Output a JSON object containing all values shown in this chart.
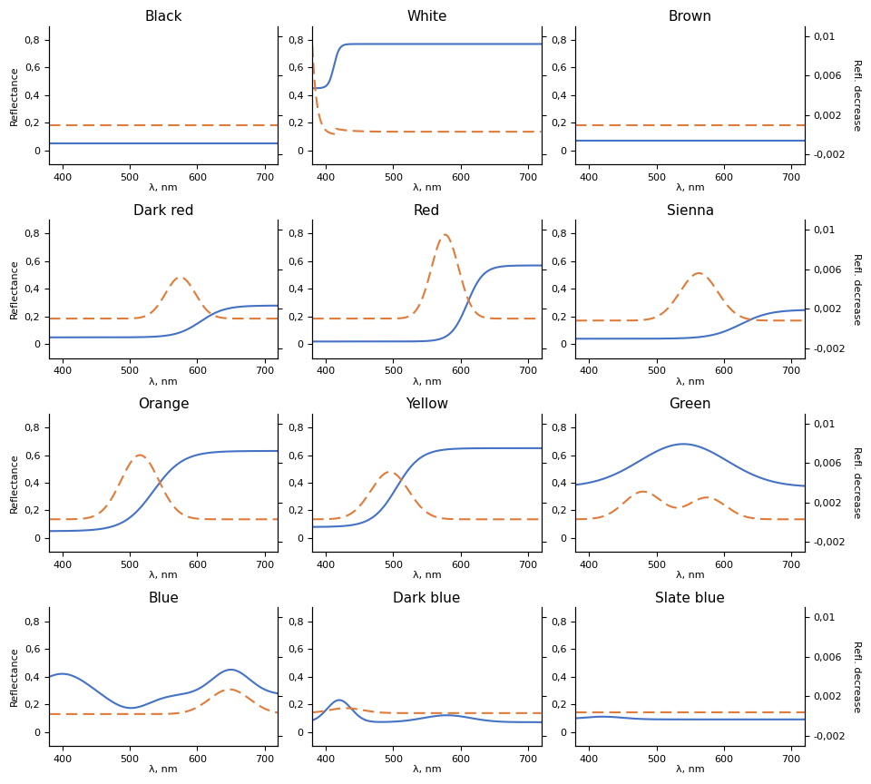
{
  "titles": [
    "Black",
    "White",
    "Brown",
    "Dark red",
    "Red",
    "Sienna",
    "Orange",
    "Yellow",
    "Green",
    "Blue",
    "Dark blue",
    "Slate blue"
  ],
  "xlim": [
    380,
    720
  ],
  "xticks": [
    400,
    500,
    600,
    700
  ],
  "ylim_left": [
    -0.1,
    0.9
  ],
  "ylim_right": [
    -0.003,
    0.011
  ],
  "yticks_left": [
    0,
    0.2,
    0.4,
    0.6,
    0.8
  ],
  "yticks_right": [
    -0.002,
    0.002,
    0.006,
    0.01
  ],
  "ytick_labels_left": [
    "0",
    "0,2",
    "0,4",
    "0,6",
    "0,8"
  ],
  "ytick_labels_right": [
    "-0,002",
    "0,002",
    "0,006",
    "0,01"
  ],
  "ylabel_left": "Reflectance",
  "ylabel_right": "Refl. decrease",
  "xlabel": "λ, nm",
  "solid_color": "#4472C4",
  "dashed_color": "#E07B39",
  "nrows": 4,
  "ncols": 3
}
